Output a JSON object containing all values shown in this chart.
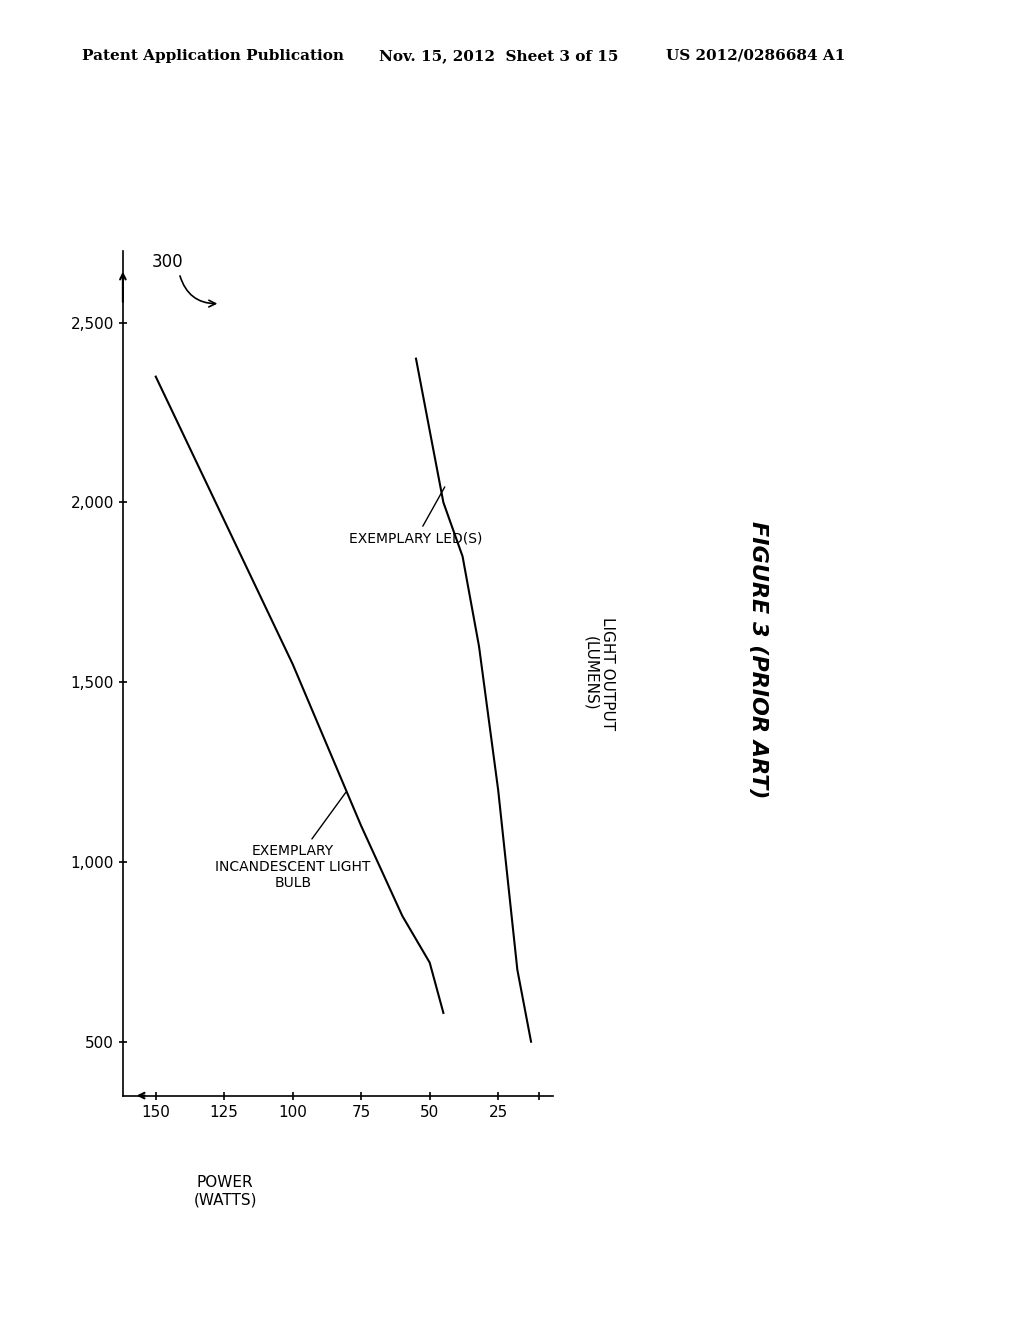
{
  "header_left": "Patent Application Publication",
  "header_mid": "Nov. 15, 2012  Sheet 3 of 15",
  "header_right": "US 2012/0286684 A1",
  "figure_label": "FIGURE 3 (PRIOR ART)",
  "figure_number": "300",
  "xlabel": "POWER\n(WATTS)",
  "ylabel": "LIGHT OUTPUT\n(LUMENS)",
  "x_ticks": [
    10,
    25,
    50,
    75,
    100,
    125,
    150
  ],
  "x_tick_labels": [
    "",
    "25",
    "50",
    "75",
    "100",
    "125",
    "150"
  ],
  "y_ticks": [
    500,
    1000,
    1500,
    2000,
    2500
  ],
  "y_tick_labels": [
    "500",
    "1,000",
    "1,500",
    "2,000",
    "2,500"
  ],
  "xlim": [
    5,
    162
  ],
  "ylim": [
    350,
    2700
  ],
  "incandescent_x": [
    150,
    125,
    100,
    75,
    60,
    50,
    45
  ],
  "incandescent_y": [
    2350,
    1950,
    1550,
    1100,
    850,
    720,
    580
  ],
  "led_x": [
    55,
    50,
    45,
    38,
    32,
    25,
    18,
    13
  ],
  "led_y": [
    2400,
    2200,
    2000,
    1850,
    1600,
    1200,
    700,
    500
  ],
  "background_color": "#ffffff",
  "line_color": "#000000",
  "font_size_header": 11,
  "font_size_axis_label": 11,
  "font_size_tick": 11,
  "font_size_annotation": 10,
  "font_size_figure_label": 16,
  "font_size_figure_number": 12
}
